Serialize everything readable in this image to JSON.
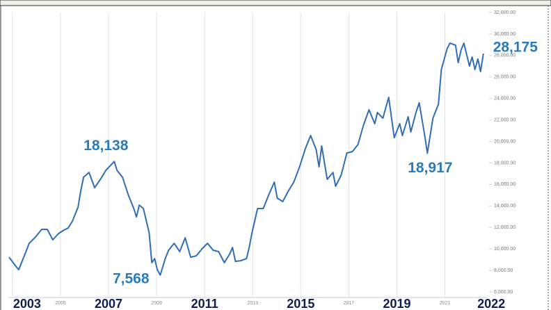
{
  "chart_data": {
    "type": "line",
    "x": [
      2002.86,
      2003.12,
      2003.26,
      2003.47,
      2003.7,
      2003.93,
      2004.22,
      2004.45,
      2004.68,
      2004.92,
      2005.09,
      2005.32,
      2005.5,
      2005.73,
      2005.84,
      2005.96,
      2006.19,
      2006.42,
      2006.66,
      2006.89,
      2007.24,
      2007.35,
      2007.58,
      2007.82,
      2008.05,
      2008.16,
      2008.28,
      2008.45,
      2008.69,
      2008.8,
      2008.92,
      2009.03,
      2009.15,
      2009.38,
      2009.5,
      2009.73,
      2009.96,
      2010.19,
      2010.42,
      2010.65,
      2010.89,
      2011.12,
      2011.35,
      2011.58,
      2011.82,
      2012.05,
      2012.16,
      2012.28,
      2012.51,
      2012.74,
      2012.86,
      2012.97,
      2013.2,
      2013.44,
      2013.67,
      2013.9,
      2014.02,
      2014.25,
      2014.48,
      2014.71,
      2014.95,
      2015.18,
      2015.41,
      2015.64,
      2015.76,
      2015.87,
      2016.1,
      2016.34,
      2016.45,
      2016.68,
      2016.92,
      2017.15,
      2017.38,
      2017.61,
      2017.84,
      2018.08,
      2018.19,
      2018.42,
      2018.66,
      2018.89,
      2019.12,
      2019.23,
      2019.47,
      2019.58,
      2019.81,
      2019.93,
      2020.16,
      2020.27,
      2020.5,
      2020.73,
      2020.85,
      2021.09,
      2021.21,
      2021.44,
      2021.55,
      2021.67,
      2021.79,
      2022.02,
      2022.13,
      2022.25,
      2022.37,
      2022.48,
      2022.6
    ],
    "series": [
      {
        "color": "#2f6db5",
        "values": [
          9230,
          8460,
          8070,
          9230,
          10530,
          11040,
          11820,
          11820,
          10850,
          11430,
          11690,
          11950,
          12600,
          13890,
          15380,
          16670,
          17120,
          15700,
          16480,
          17320,
          18138,
          17320,
          16670,
          15050,
          13760,
          12980,
          14080,
          13760,
          11500,
          8720,
          9100,
          8070,
          7568,
          9230,
          9880,
          10530,
          9750,
          11040,
          9230,
          9360,
          10010,
          10530,
          9880,
          9750,
          8720,
          9560,
          10140,
          8840,
          8910,
          9100,
          10200,
          11500,
          13760,
          13760,
          15050,
          16220,
          14730,
          14410,
          15380,
          16220,
          17640,
          19260,
          20550,
          19260,
          17640,
          19580,
          16480,
          17120,
          15830,
          16870,
          18930,
          19060,
          19710,
          21520,
          22950,
          21650,
          22690,
          22170,
          24110,
          20360,
          21650,
          20550,
          22300,
          20880,
          22820,
          23590,
          20550,
          18917,
          22170,
          23460,
          26700,
          28640,
          29150,
          28960,
          27340,
          28510,
          29150,
          27020,
          27860,
          26700,
          27670,
          26500,
          28175
        ],
        "value_labels": [
          null,
          null,
          null,
          null,
          null,
          null,
          null,
          null,
          null,
          null,
          null,
          null,
          null,
          null,
          null,
          null,
          null,
          null,
          null,
          null,
          "18,138",
          null,
          null,
          null,
          null,
          null,
          null,
          null,
          null,
          null,
          null,
          null,
          "7,568",
          null,
          null,
          null,
          null,
          null,
          null,
          null,
          null,
          null,
          null,
          null,
          null,
          null,
          null,
          null,
          null,
          null,
          null,
          null,
          null,
          null,
          null,
          null,
          null,
          null,
          null,
          null,
          null,
          null,
          null,
          null,
          null,
          null,
          null,
          null,
          null,
          null,
          null,
          null,
          null,
          null,
          null,
          null,
          null,
          null,
          null,
          null,
          null,
          null,
          null,
          null,
          null,
          null,
          null,
          "18,917",
          null,
          null,
          null,
          null,
          null,
          null,
          null,
          null,
          null,
          null,
          null,
          null,
          null,
          null,
          "28,175"
        ]
      }
    ],
    "xlim": [
      2002.83,
      2022.75
    ],
    "xticks": [
      2003,
      2005,
      2007,
      2009,
      2011,
      2013,
      2015,
      2017,
      2019,
      2021,
      2022
    ],
    "ylim": [
      6000,
      32000
    ],
    "yticks": [
      {
        "value": 6000,
        "label": "6,000.00"
      },
      {
        "value": 8000,
        "label": "8,000.00"
      },
      {
        "value": 10000,
        "label": "10,000.00"
      },
      {
        "value": 12000,
        "label": "12,000.00"
      },
      {
        "value": 14000,
        "label": "14,000.00"
      },
      {
        "value": 16000,
        "label": "16,000.00"
      },
      {
        "value": 18000,
        "label": "18,000.00"
      },
      {
        "value": 20000,
        "label": "20,000.00"
      },
      {
        "value": 22000,
        "label": "22,000.00"
      },
      {
        "value": 24000,
        "label": "24,000.00"
      },
      {
        "value": 26000,
        "label": "26,000.00"
      },
      {
        "value": 28000,
        "label": "28,000.00"
      },
      {
        "value": 30000,
        "label": "30,000.00"
      },
      {
        "value": 32000,
        "label": "32,000.00"
      }
    ],
    "grid": true
  }
}
